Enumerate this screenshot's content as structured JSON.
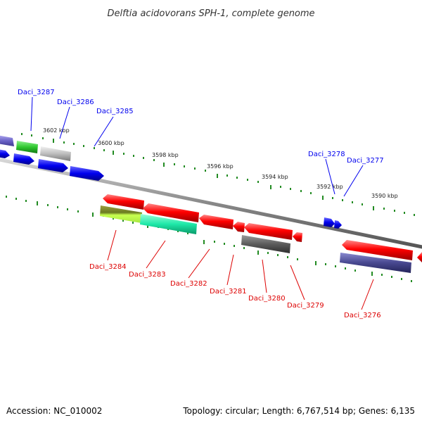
{
  "title": "Delftia acidovorans SPH-1, complete genome",
  "footer": {
    "accession": "Accession: NC_010002",
    "topology": "Topology: circular; Length: 6,767,514 bp; Genes: 6,135"
  },
  "colors": {
    "forward_label": "#0000ee",
    "reverse_label": "#dd0000",
    "backbone": "#888888",
    "tick": "#228b22"
  },
  "scale_labels": [
    "3602 kbp",
    "3600 kbp",
    "3598 kbp",
    "3596 kbp",
    "3594 kbp",
    "3592 kbp",
    "3590 kbp"
  ],
  "forward_genes": [
    "Daci_3287",
    "Daci_3286",
    "Daci_3285",
    "Daci_3278",
    "Daci_3277"
  ],
  "reverse_genes": [
    "Daci_3284",
    "Daci_3283",
    "Daci_3282",
    "Daci_3281",
    "Daci_3280",
    "Daci_3279",
    "Daci_3276"
  ]
}
